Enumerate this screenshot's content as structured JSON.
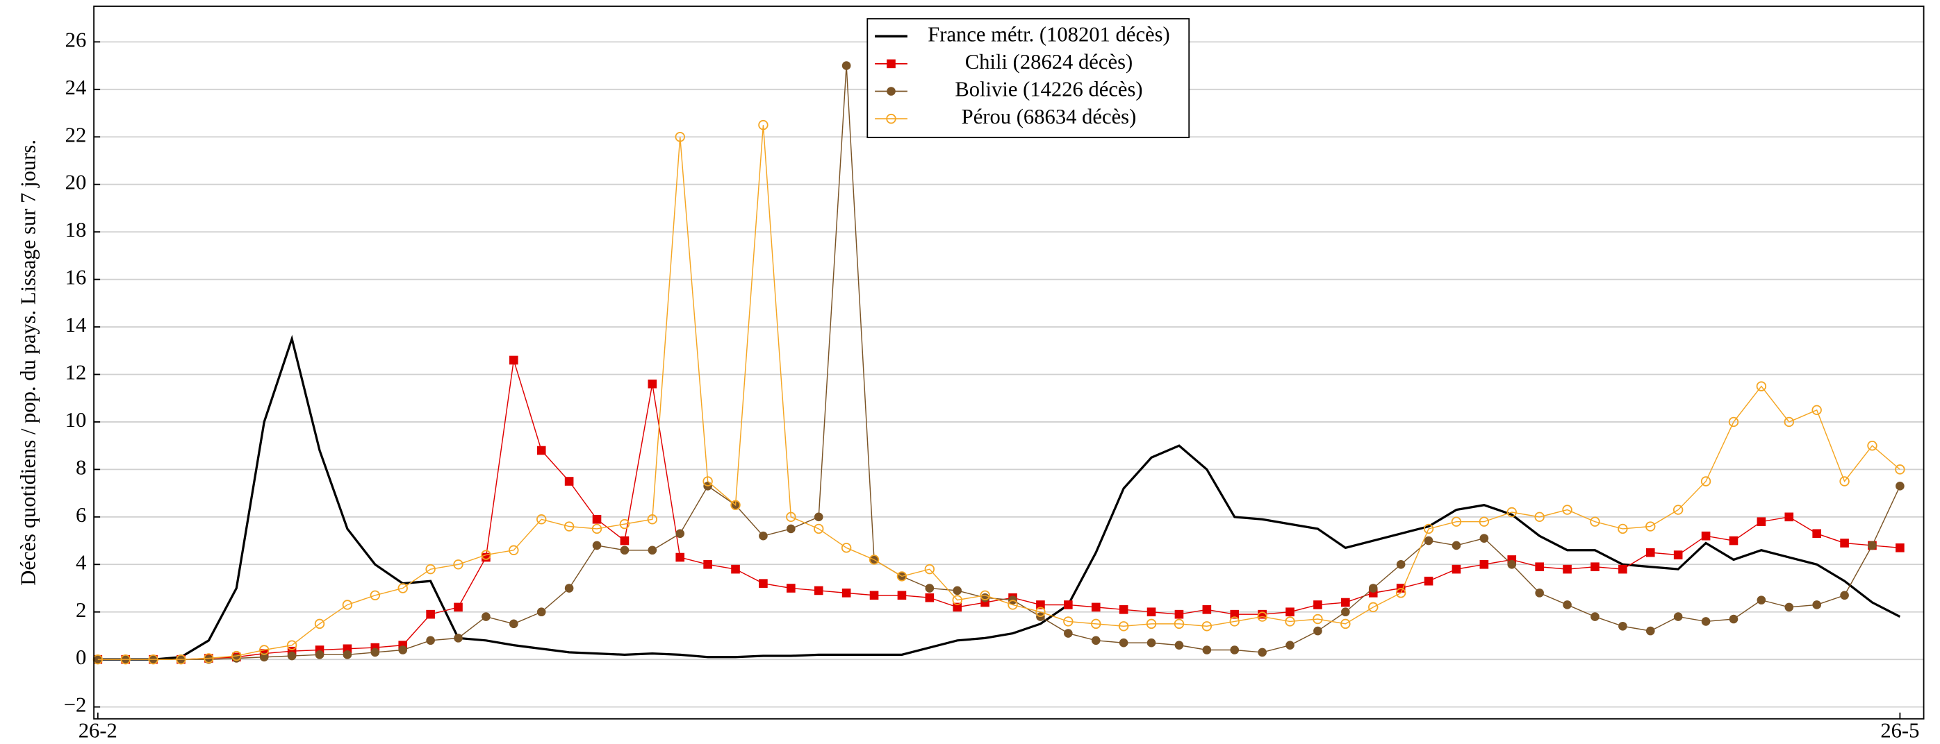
{
  "chart_data": {
    "type": "line",
    "y_label": "Décès quotidiens / pop. du pays. Lissage sur 7 jours.",
    "x": [
      0,
      7,
      14,
      21,
      28,
      35,
      42,
      49,
      56,
      63,
      70,
      77,
      84,
      91,
      98,
      105,
      112,
      119,
      126,
      133,
      140,
      147,
      154,
      161,
      168,
      175,
      182,
      189,
      196,
      203,
      210,
      217,
      224,
      231,
      238,
      245,
      252,
      259,
      266,
      273,
      280,
      287,
      294,
      301,
      308,
      315,
      322,
      329,
      336,
      343,
      350,
      357,
      364,
      371,
      378,
      385,
      392,
      399,
      406,
      413,
      420,
      427,
      434,
      441,
      448,
      455
    ],
    "xlim": [
      -1,
      461
    ],
    "xticks": [
      {
        "value": 0,
        "label": "26-2"
      },
      {
        "value": 455,
        "label": "26-5"
      }
    ],
    "ylim": [
      -2.5,
      27.5
    ],
    "yticks": [
      {
        "value": -2,
        "label": "−2"
      },
      0,
      2,
      4,
      6,
      8,
      10,
      12,
      14,
      16,
      18,
      20,
      22,
      24,
      26
    ],
    "grid": true,
    "legend_position": "top-center",
    "series": [
      {
        "name": "France métr. (108201 décès)",
        "color": "#000000",
        "marker": "none",
        "values": [
          0,
          0,
          0,
          0.1,
          0.8,
          3,
          10,
          13.5,
          8.8,
          5.5,
          4,
          3.2,
          3.3,
          0.9,
          0.8,
          0.6,
          0.45,
          0.3,
          0.25,
          0.2,
          0.25,
          0.2,
          0.1,
          0.1,
          0.15,
          0.15,
          0.2,
          0.2,
          0.2,
          0.2,
          0.5,
          0.8,
          0.9,
          1.1,
          1.5,
          2.3,
          4.5,
          7.2,
          8.5,
          9,
          8,
          6,
          5.9,
          5.7,
          5.5,
          4.7,
          5,
          5.3,
          5.6,
          6.3,
          6.5,
          6.1,
          5.2,
          4.6,
          4.6,
          4,
          3.9,
          3.8,
          4.9,
          4.2,
          4.6,
          4.3,
          4,
          3.3,
          2.4,
          1.8
        ]
      },
      {
        "name": "Chili (28624 décès)",
        "color": "#e00000",
        "marker": "square",
        "values": [
          0,
          0,
          0,
          0,
          0.05,
          0.1,
          0.25,
          0.35,
          0.4,
          0.45,
          0.5,
          0.6,
          1.9,
          2.2,
          4.3,
          12.6,
          8.8,
          7.5,
          5.9,
          5.0,
          11.6,
          4.3,
          4.0,
          3.8,
          3.2,
          3.0,
          2.9,
          2.8,
          2.7,
          2.7,
          2.6,
          2.2,
          2.4,
          2.6,
          2.3,
          2.3,
          2.2,
          2.1,
          2.0,
          1.9,
          2.1,
          1.9,
          1.9,
          2.0,
          2.3,
          2.4,
          2.8,
          3.0,
          3.3,
          3.8,
          4.0,
          4.2,
          3.9,
          3.8,
          3.9,
          3.8,
          4.5,
          4.4,
          5.2,
          5.0,
          5.8,
          6.0,
          5.3,
          4.9,
          4.8,
          4.7
        ]
      },
      {
        "name": "Bolivie (14226 décès)",
        "color": "#7b5426",
        "marker": "circle",
        "values": [
          0,
          0,
          0,
          0,
          0,
          0.05,
          0.1,
          0.15,
          0.2,
          0.2,
          0.3,
          0.4,
          0.8,
          0.9,
          1.8,
          1.5,
          2.0,
          3,
          4.8,
          4.6,
          4.6,
          5.3,
          7.3,
          6.5,
          5.2,
          5.5,
          6.0,
          25,
          4.2,
          3.5,
          3.0,
          2.9,
          2.6,
          2.5,
          1.8,
          1.1,
          0.8,
          0.7,
          0.7,
          0.6,
          0.4,
          0.4,
          0.3,
          0.6,
          1.2,
          2,
          3,
          4,
          5,
          4.8,
          5.1,
          4,
          2.8,
          2.3,
          1.8,
          1.4,
          1.2,
          1.8,
          1.6,
          1.7,
          2.5,
          2.2,
          2.3,
          2.7,
          4.8,
          7.3
        ]
      },
      {
        "name": "Pérou (68634 décès)",
        "color": "#f5a623",
        "marker": "open-circle",
        "values": [
          0,
          0,
          0,
          0,
          0.05,
          0.15,
          0.4,
          0.6,
          1.5,
          2.3,
          2.7,
          3.0,
          3.8,
          4.0,
          4.4,
          4.6,
          5.9,
          5.6,
          5.5,
          5.7,
          5.9,
          22,
          7.5,
          6.5,
          22.5,
          6.0,
          5.5,
          4.7,
          4.2,
          3.5,
          3.8,
          2.5,
          2.7,
          2.3,
          2.0,
          1.6,
          1.5,
          1.4,
          1.5,
          1.5,
          1.4,
          1.6,
          1.8,
          1.6,
          1.7,
          1.5,
          2.2,
          2.8,
          5.5,
          5.8,
          5.8,
          6.2,
          6.0,
          6.3,
          5.8,
          5.5,
          5.6,
          6.3,
          7.5,
          10.0,
          11.5,
          10.0,
          10.5,
          7.5,
          9.0,
          8.0
        ]
      }
    ]
  }
}
